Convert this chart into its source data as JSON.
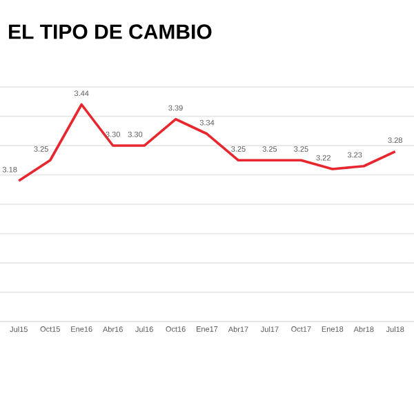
{
  "chart_data": {
    "type": "line",
    "title": "EL TIPO DE CAMBIO",
    "categories": [
      "Jul15",
      "Oct15",
      "Ene16",
      "Abr16",
      "Jul16",
      "Oct16",
      "Ene17",
      "Abr17",
      "Jul17",
      "Oct17",
      "Ene18",
      "Abr18",
      "Jul18"
    ],
    "series": [
      {
        "color": "#e8262d",
        "values": [
          3.18,
          3.25,
          3.44,
          3.3,
          3.3,
          3.39,
          3.34,
          3.25,
          3.25,
          3.25,
          3.22,
          3.23,
          3.28
        ],
        "value_labels": [
          "3.18",
          "3.25",
          "3.44",
          "3.30",
          "3.30",
          "3.39",
          "3.34",
          "3.25",
          "3.25",
          "3.25",
          "3.22",
          "3.23",
          "3.28"
        ]
      }
    ],
    "ylim": [
      2.7,
      3.5
    ],
    "yticks": [
      {
        "value": 2.7,
        "label": null
      },
      {
        "value": 2.8,
        "label": null
      },
      {
        "value": 2.9,
        "label": null
      },
      {
        "value": 3.0,
        "label": null
      },
      {
        "value": 3.1,
        "label": null
      },
      {
        "value": 3.2,
        "label": null
      },
      {
        "value": 3.3,
        "label": null
      },
      {
        "value": 3.4,
        "label": null
      },
      {
        "value": 3.5,
        "label": null
      }
    ],
    "tick_labels": "x",
    "grid": "y",
    "marker": "none",
    "line_style": "solid"
  }
}
